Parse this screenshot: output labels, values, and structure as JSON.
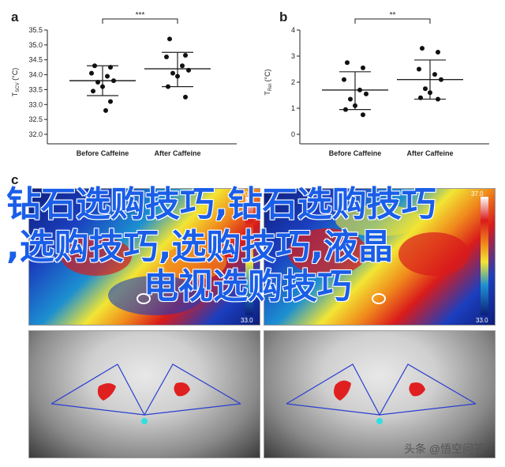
{
  "panel_a": {
    "letter": "a",
    "ylabel": "T",
    "ylabel_sub": "SCV",
    "ylabel_unit": "(°C)",
    "sig": "***",
    "yticks": [
      "32.0",
      "32.5",
      "33.0",
      "33.5",
      "34.0",
      "34.5",
      "35.0",
      "35.5"
    ],
    "categories": [
      "Before Caffeine",
      "After Caffeine"
    ]
  },
  "panel_b": {
    "letter": "b",
    "ylabel": "T",
    "ylabel_sub": "Rel",
    "ylabel_unit": "(°C)",
    "sig": "**",
    "yticks": [
      "0",
      "1",
      "2",
      "3",
      "4"
    ],
    "categories": [
      "Before Caffeine",
      "After Caffeine"
    ]
  },
  "panel_c": {
    "letter": "c",
    "cb_left_max": "37.0",
    "cb_left_min": "33.0",
    "cb_right_max": "37.0",
    "cb_right_min": "33.0"
  },
  "overlay": {
    "line1": "钻石选购技巧,钻石选购技巧",
    "line2": ",选购技巧,选购技巧,液晶",
    "line3": "电视选购技巧"
  },
  "watermark": "头条 @悟空问答",
  "chart_data": [
    {
      "type": "scatter",
      "xlabel": "",
      "ylabel": "TSCV (°C)",
      "ylim": [
        32.0,
        35.5
      ],
      "categories": [
        "Before Caffeine",
        "After Caffeine"
      ],
      "annotation": "***",
      "series": [
        {
          "category": "Before Caffeine",
          "points": [
            34.3,
            34.25,
            34.05,
            33.95,
            33.8,
            33.75,
            33.6,
            33.45,
            33.1,
            32.8
          ],
          "mean": 33.8,
          "sd_low": 33.3,
          "sd_high": 34.3
        },
        {
          "category": "After Caffeine",
          "points": [
            35.2,
            34.65,
            34.6,
            34.3,
            34.15,
            34.05,
            33.95,
            33.6,
            33.25
          ],
          "mean": 34.2,
          "sd_low": 33.6,
          "sd_high": 34.75
        }
      ]
    },
    {
      "type": "scatter",
      "xlabel": "",
      "ylabel": "TRel (°C)",
      "ylim": [
        0,
        4
      ],
      "categories": [
        "Before Caffeine",
        "After Caffeine"
      ],
      "annotation": "**",
      "series": [
        {
          "category": "Before Caffeine",
          "points": [
            2.75,
            2.55,
            2.1,
            1.7,
            1.55,
            1.35,
            1.1,
            0.95,
            0.75
          ],
          "mean": 1.7,
          "sd_low": 0.95,
          "sd_high": 2.4
        },
        {
          "category": "After Caffeine",
          "points": [
            3.3,
            3.15,
            2.5,
            2.3,
            2.1,
            1.75,
            1.6,
            1.4,
            1.35
          ],
          "mean": 2.1,
          "sd_low": 1.35,
          "sd_high": 2.85
        }
      ]
    }
  ]
}
